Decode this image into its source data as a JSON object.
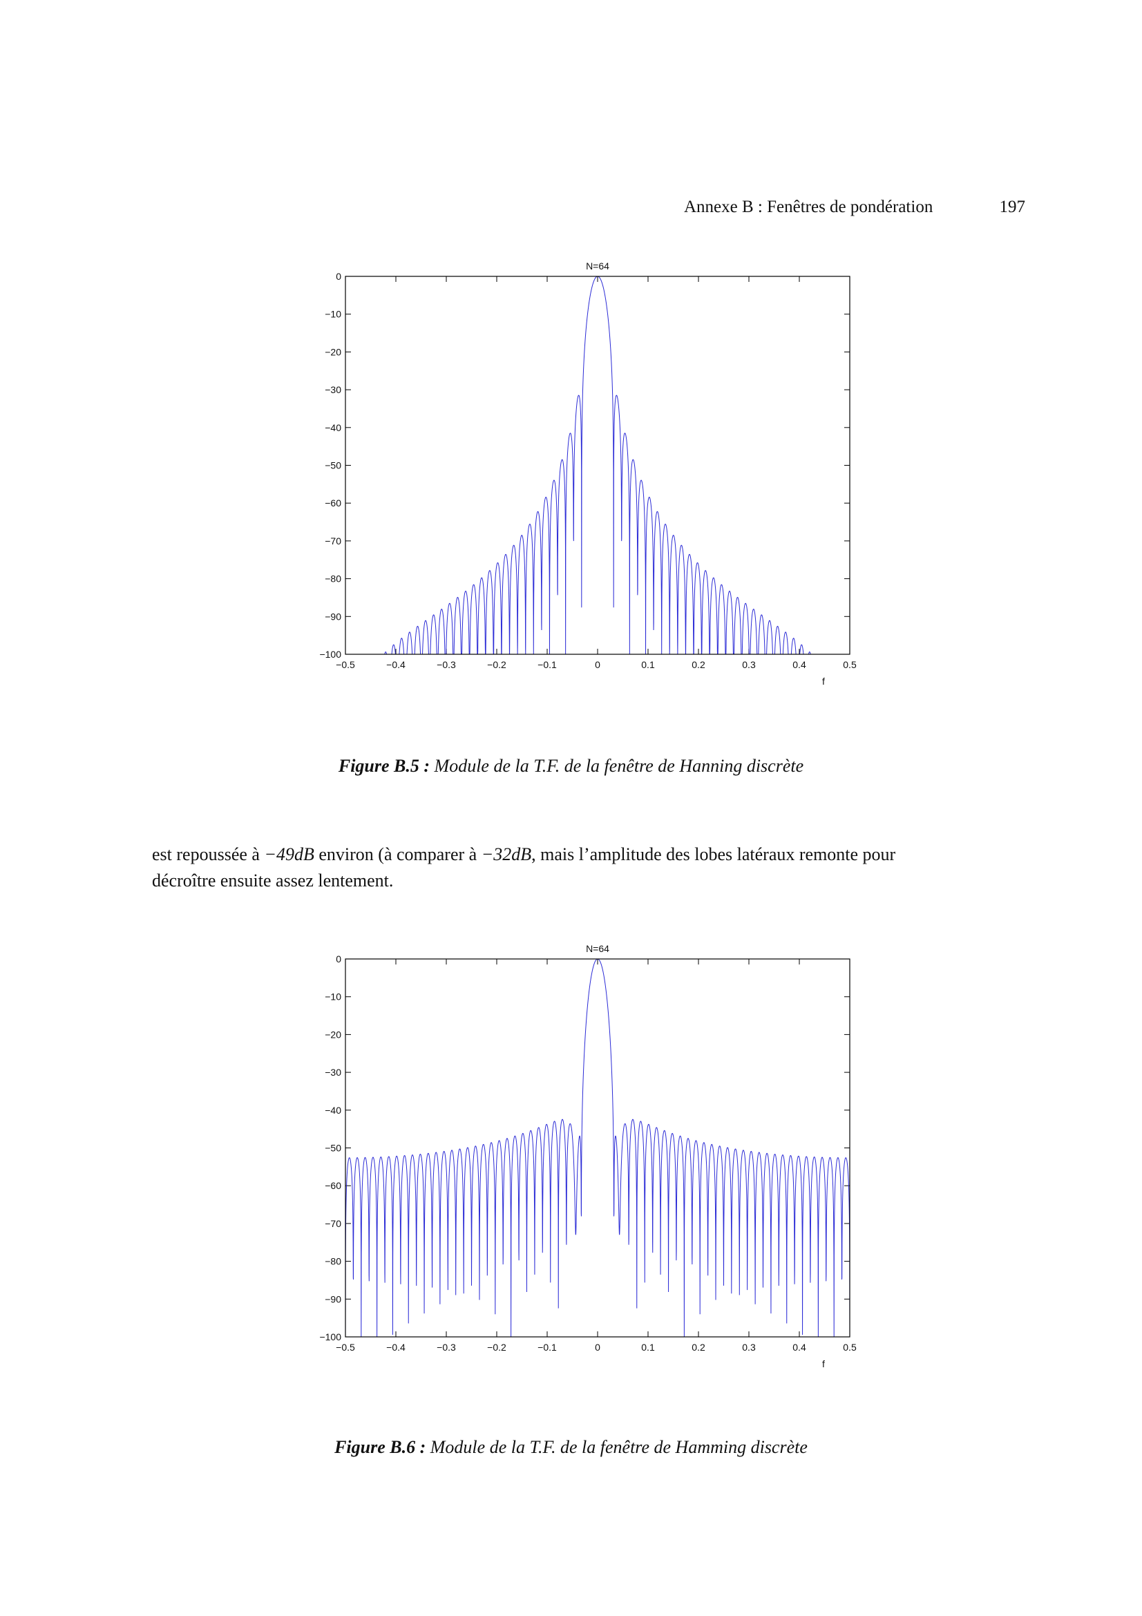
{
  "header": {
    "title": "Annexe B : Fenêtres de pondération",
    "page_number": "197"
  },
  "body": {
    "line1_a": "est repoussée à ",
    "line1_b": "−49dB",
    "line1_c": " environ (à comparer à ",
    "line1_d": "−32dB",
    "line1_e": ", mais l’amplitude des lobes latéraux remonte pour",
    "line2": "décroître ensuite assez lentement."
  },
  "figures": [
    {
      "label": "Figure B.5 :",
      "caption": " Module de la T.F. de la fenêtre de Hanning discrète"
    },
    {
      "label": "Figure B.6 :",
      "caption": " Module de la T.F. de la fenêtre de Hamming discrète"
    }
  ],
  "chart_data": [
    {
      "type": "line",
      "title": "N=64",
      "xlabel": "f",
      "ylabel": "",
      "xlim": [
        -0.5,
        0.5
      ],
      "ylim": [
        -100,
        0
      ],
      "xticks": [
        "−0.5",
        "−0.4",
        "−0.3",
        "−0.2",
        "−0.1",
        "0",
        "0.1",
        "0.2",
        "0.3",
        "0.4",
        "0.5"
      ],
      "yticks": [
        "0",
        "−10",
        "−20",
        "−30",
        "−40",
        "−50",
        "−60",
        "−70",
        "−80",
        "−90",
        "−100"
      ],
      "series": [
        {
          "window": "hanning",
          "N": 64,
          "db_floor": -100,
          "color": "#2b2bd6"
        }
      ]
    },
    {
      "type": "line",
      "title": "N=64",
      "xlabel": "f",
      "ylabel": "",
      "xlim": [
        -0.5,
        0.5
      ],
      "ylim": [
        -100,
        0
      ],
      "xticks": [
        "−0.5",
        "−0.4",
        "−0.3",
        "−0.2",
        "−0.1",
        "0",
        "0.1",
        "0.2",
        "0.3",
        "0.4",
        "0.5"
      ],
      "yticks": [
        "0",
        "−10",
        "−20",
        "−30",
        "−40",
        "−50",
        "−60",
        "−70",
        "−80",
        "−90",
        "−100"
      ],
      "series": [
        {
          "window": "hamming",
          "N": 64,
          "db_floor": -100,
          "color": "#2b2bd6"
        }
      ]
    }
  ]
}
